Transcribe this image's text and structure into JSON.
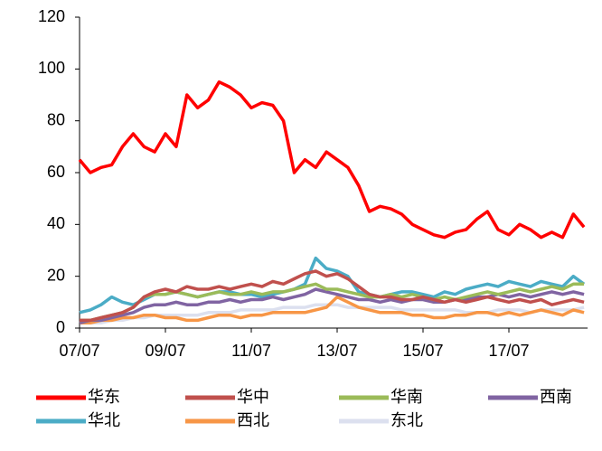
{
  "chart_data": {
    "type": "line",
    "categories": [
      "07/07",
      null,
      null,
      null,
      null,
      null,
      null,
      null,
      "09/07",
      null,
      null,
      null,
      null,
      null,
      null,
      null,
      "11/07",
      null,
      null,
      null,
      null,
      null,
      null,
      null,
      "13/07",
      null,
      null,
      null,
      null,
      null,
      null,
      null,
      "15/07",
      null,
      null,
      null,
      null,
      null,
      null,
      null,
      "17/07",
      null,
      null,
      null,
      null,
      null,
      null,
      null
    ],
    "ylim": [
      0,
      120
    ],
    "yticks": [
      0,
      20,
      40,
      60,
      80,
      100,
      120
    ],
    "grid": false,
    "series": [
      {
        "name": "华东",
        "color": "#ff0000",
        "values": [
          65,
          60,
          62,
          63,
          70,
          75,
          70,
          68,
          75,
          70,
          90,
          85,
          88,
          95,
          93,
          90,
          85,
          87,
          86,
          80,
          60,
          65,
          62,
          68,
          65,
          62,
          55,
          45,
          47,
          46,
          44,
          40,
          38,
          36,
          35,
          37,
          38,
          42,
          45,
          38,
          36,
          40,
          38,
          35,
          37,
          35,
          44,
          39
        ]
      },
      {
        "name": "华中",
        "color": "#c0504d",
        "values": [
          3,
          3,
          4,
          5,
          6,
          8,
          12,
          14,
          15,
          14,
          16,
          15,
          15,
          16,
          15,
          16,
          17,
          16,
          18,
          17,
          19,
          21,
          22,
          20,
          21,
          19,
          16,
          13,
          12,
          12,
          11,
          11,
          12,
          11,
          10,
          11,
          10,
          11,
          12,
          11,
          10,
          11,
          10,
          11,
          9,
          10,
          11,
          10
        ]
      },
      {
        "name": "华南",
        "color": "#9bbb59",
        "values": [
          3,
          3,
          4,
          5,
          6,
          8,
          12,
          13,
          13,
          14,
          13,
          12,
          13,
          14,
          13,
          13,
          14,
          13,
          14,
          14,
          15,
          16,
          17,
          15,
          15,
          14,
          13,
          12,
          12,
          13,
          12,
          13,
          12,
          11,
          12,
          11,
          12,
          13,
          14,
          13,
          14,
          15,
          14,
          15,
          16,
          15,
          17,
          17
        ]
      },
      {
        "name": "西南",
        "color": "#8064a2",
        "values": [
          2,
          3,
          3,
          4,
          5,
          6,
          8,
          9,
          9,
          10,
          9,
          9,
          10,
          10,
          11,
          10,
          11,
          11,
          12,
          11,
          12,
          13,
          15,
          14,
          13,
          12,
          11,
          11,
          10,
          11,
          10,
          11,
          11,
          10,
          10,
          11,
          11,
          12,
          12,
          13,
          12,
          13,
          12,
          13,
          14,
          13,
          14,
          13
        ]
      },
      {
        "name": "华北",
        "color": "#4bacc6",
        "values": [
          6,
          7,
          9,
          12,
          10,
          9,
          11,
          13,
          13,
          14,
          13,
          12,
          13,
          14,
          14,
          13,
          13,
          12,
          13,
          14,
          15,
          17,
          27,
          23,
          22,
          20,
          14,
          13,
          12,
          13,
          14,
          14,
          13,
          12,
          14,
          13,
          15,
          16,
          17,
          16,
          18,
          17,
          16,
          18,
          17,
          16,
          20,
          17
        ]
      },
      {
        "name": "西北",
        "color": "#f79646",
        "values": [
          2,
          2,
          3,
          3,
          4,
          4,
          5,
          5,
          4,
          4,
          3,
          3,
          4,
          5,
          5,
          4,
          5,
          5,
          6,
          6,
          6,
          6,
          7,
          8,
          12,
          10,
          8,
          7,
          6,
          6,
          6,
          5,
          5,
          4,
          4,
          5,
          5,
          6,
          6,
          5,
          6,
          5,
          6,
          7,
          6,
          5,
          7,
          6
        ]
      },
      {
        "name": "东北",
        "color": "#dce0ef",
        "values": [
          2,
          2,
          2,
          3,
          3,
          4,
          4,
          5,
          5,
          5,
          5,
          5,
          6,
          6,
          6,
          7,
          7,
          7,
          7,
          8,
          8,
          8,
          9,
          9,
          9,
          8,
          8,
          8,
          8,
          8,
          7,
          7,
          7,
          7,
          7,
          7,
          6,
          6,
          6,
          7,
          7,
          7,
          6,
          7,
          7,
          7,
          7,
          8
        ]
      }
    ]
  }
}
